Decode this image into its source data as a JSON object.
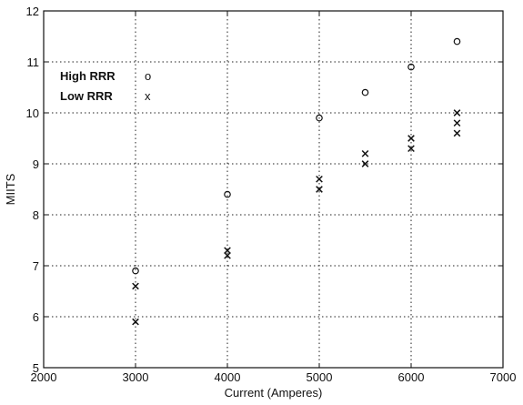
{
  "chart_data": {
    "type": "scatter",
    "title": "",
    "xlabel": "Current (Amperes)",
    "ylabel": "MIITS",
    "xlim": [
      2000,
      7000
    ],
    "ylim": [
      5,
      12
    ],
    "xticks": [
      2000,
      3000,
      4000,
      5000,
      6000,
      7000
    ],
    "yticks": [
      5,
      6,
      7,
      8,
      9,
      10,
      11,
      12
    ],
    "grid": true,
    "grid_style": "dotted",
    "legend_position": "top-left",
    "series": [
      {
        "name": "High RRR",
        "marker": "o",
        "points": [
          {
            "x": 3000,
            "y": 6.9
          },
          {
            "x": 4000,
            "y": 8.4
          },
          {
            "x": 5000,
            "y": 9.9
          },
          {
            "x": 5500,
            "y": 10.4
          },
          {
            "x": 6000,
            "y": 10.9
          },
          {
            "x": 6500,
            "y": 11.4
          }
        ]
      },
      {
        "name": "Low RRR",
        "marker": "x",
        "points": [
          {
            "x": 3000,
            "y": 6.6
          },
          {
            "x": 3000,
            "y": 5.9
          },
          {
            "x": 4000,
            "y": 7.3
          },
          {
            "x": 4000,
            "y": 7.2
          },
          {
            "x": 5000,
            "y": 8.7
          },
          {
            "x": 5000,
            "y": 8.5
          },
          {
            "x": 5500,
            "y": 9.2
          },
          {
            "x": 5500,
            "y": 9.0
          },
          {
            "x": 6000,
            "y": 9.5
          },
          {
            "x": 6000,
            "y": 9.3
          },
          {
            "x": 6500,
            "y": 10.0
          },
          {
            "x": 6500,
            "y": 9.8
          },
          {
            "x": 6500,
            "y": 9.6
          }
        ]
      }
    ],
    "legend": {
      "entries": [
        {
          "label": "High RRR",
          "symbol": "o"
        },
        {
          "label": "Low RRR",
          "symbol": "x"
        }
      ]
    }
  }
}
